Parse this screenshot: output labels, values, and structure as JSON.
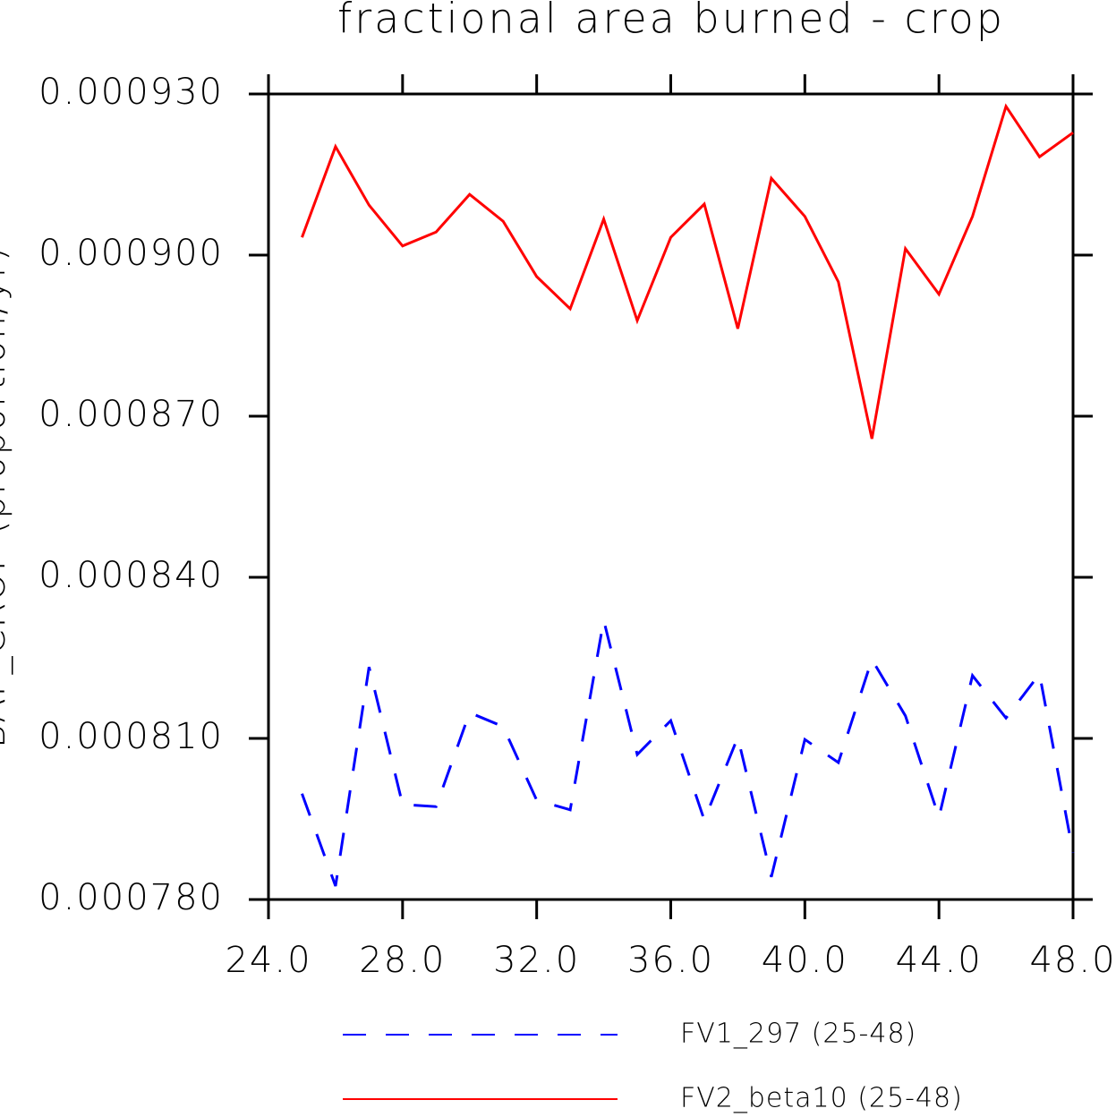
{
  "chart_data": {
    "type": "line",
    "title": "fractional area burned - crop",
    "y_label": "BAF_CROP (proportion/yr)",
    "x": [
      25,
      26,
      27,
      28,
      29,
      30,
      31,
      32,
      33,
      34,
      35,
      36,
      37,
      38,
      39,
      40,
      41,
      42,
      43,
      44,
      45,
      46,
      47,
      48
    ],
    "series": [
      {
        "name": "FV1_297 (25-48)",
        "color": "#0000ff",
        "dash": true,
        "values": [
          0.0007997,
          0.0007825,
          0.0008233,
          0.0007977,
          0.0007973,
          0.0008148,
          0.0008122,
          0.0007985,
          0.0007967,
          0.000832,
          0.000807,
          0.0008133,
          0.0007948,
          0.0008102,
          0.0007842,
          0.0008098,
          0.0008055,
          0.0008247,
          0.0008142,
          0.0007953,
          0.0008217,
          0.0008138,
          0.000822,
          0.0007887
        ]
      },
      {
        "name": "FV2_beta10 (25-48)",
        "color": "#ff0000",
        "dash": false,
        "values": [
          0.0009033,
          0.0009202,
          0.0009093,
          0.0009017,
          0.0009043,
          0.0009113,
          0.0009063,
          0.000896,
          0.00089,
          0.0009067,
          0.0008878,
          0.0009033,
          0.0009095,
          0.0008863,
          0.0009143,
          0.0009072,
          0.000895,
          0.0008658,
          0.0009012,
          0.0008927,
          0.0009072,
          0.0009277,
          0.0009183,
          0.0009228
        ]
      }
    ],
    "xlim": [
      24,
      48
    ],
    "xticks": [
      {
        "value": 24,
        "label": "24.0"
      },
      {
        "value": 28,
        "label": "28.0"
      },
      {
        "value": 32,
        "label": "32.0"
      },
      {
        "value": 36,
        "label": "36.0"
      },
      {
        "value": 40,
        "label": "40.0"
      },
      {
        "value": 44,
        "label": "44.0"
      },
      {
        "value": 48,
        "label": "48.0"
      }
    ],
    "ylim": [
      0.00078,
      0.00093
    ],
    "yticks": [
      {
        "value": 0.00078,
        "label": "0.000780"
      },
      {
        "value": 0.00081,
        "label": "0.000810"
      },
      {
        "value": 0.00084,
        "label": "0.000840"
      },
      {
        "value": 0.00087,
        "label": "0.000870"
      },
      {
        "value": 0.0009,
        "label": "0.000900"
      },
      {
        "value": 0.00093,
        "label": "0.000930"
      }
    ]
  }
}
